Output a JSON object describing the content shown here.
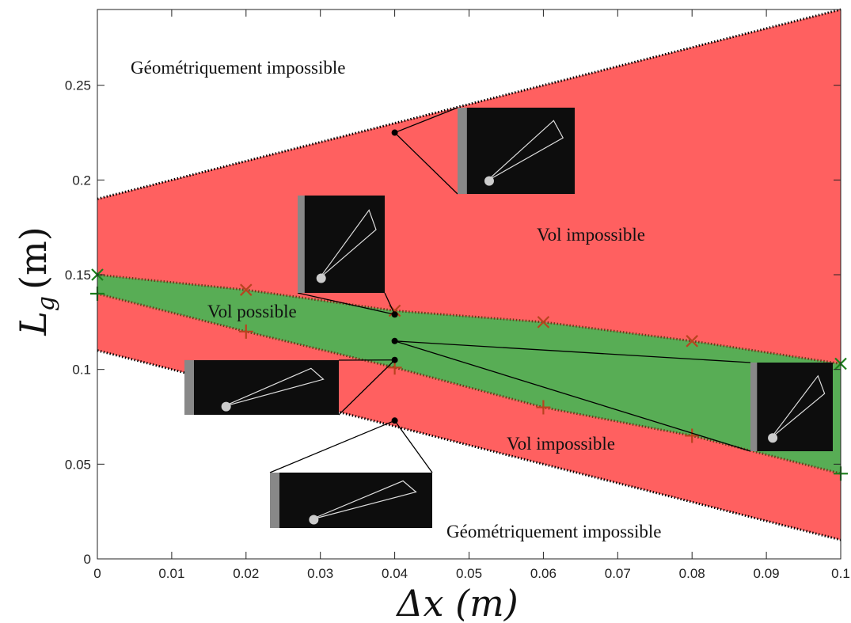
{
  "chart_data": {
    "type": "region",
    "x_label": "Δx (m)",
    "y_label_symbol": "L",
    "y_label_subscript": "g",
    "y_label_unit": "(m)",
    "xlim": [
      0,
      0.1
    ],
    "ylim": [
      0,
      0.29
    ],
    "xticks": [
      0,
      0.01,
      0.02,
      0.03,
      0.04,
      0.05,
      0.06,
      0.07,
      0.08,
      0.09,
      0.1
    ],
    "yticks": [
      0,
      0.05,
      0.1,
      0.15,
      0.2,
      0.25
    ],
    "red_region": {
      "x": [
        0,
        0.1
      ],
      "upper": [
        0.19,
        0.29
      ],
      "lower": [
        0.11,
        0.01
      ],
      "color": "#ff6060"
    },
    "green_region": {
      "x": [
        0,
        0.02,
        0.04,
        0.06,
        0.08,
        0.1
      ],
      "upper": [
        0.15,
        0.142,
        0.131,
        0.125,
        0.115,
        0.103
      ],
      "lower": [
        0.14,
        0.12,
        0.101,
        0.08,
        0.065,
        0.045
      ],
      "color": "#58ad55",
      "upper_marker_color": "#b8431f",
      "lower_marker_color": "#b8431f",
      "end_marker_color": "#1a7f1a"
    },
    "points": {
      "x": [
        0.04,
        0.04,
        0.04,
        0.04,
        0.04
      ],
      "y": [
        0.225,
        0.129,
        0.115,
        0.105,
        0.073
      ]
    },
    "annotations": [
      "Géométriquement impossible",
      "Vol impossible",
      "Vol possible",
      "Vol impossible",
      "Géométriquement impossible"
    ]
  }
}
